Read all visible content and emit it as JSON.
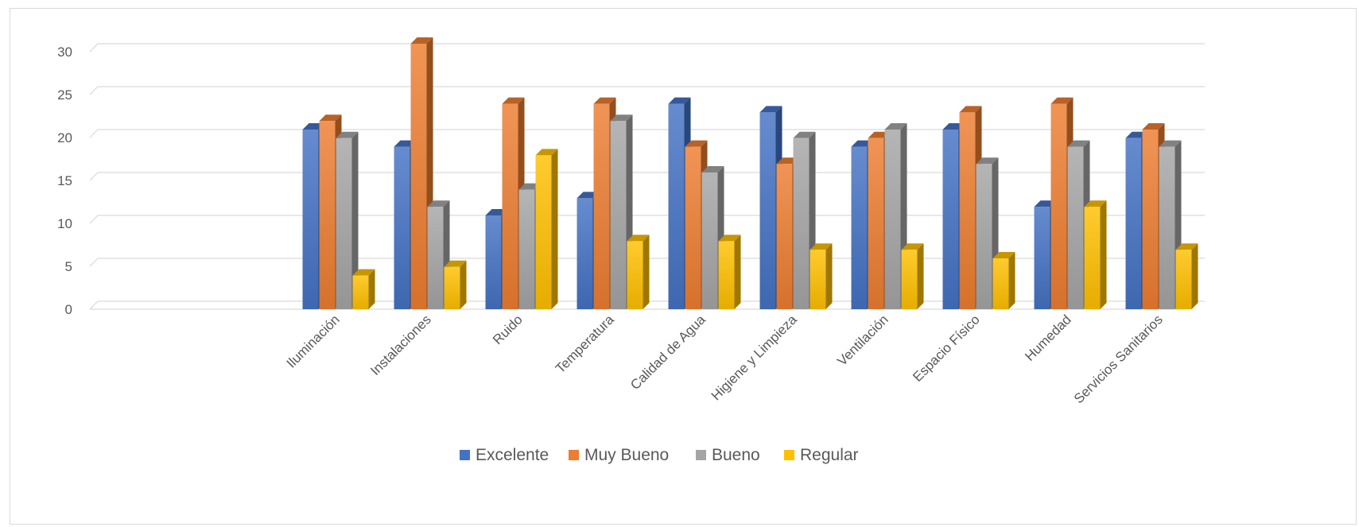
{
  "chart_data": {
    "type": "bar",
    "style": "3d-clustered-column",
    "categories": [
      "",
      "",
      "Iluminación",
      "Instalaciones",
      "Ruido",
      "Temperatura",
      "Calidad de Agua",
      "Higiene y Limpieza",
      "Ventilación",
      "Espacio Físico",
      "Humedad",
      "Servicios Sanitarios"
    ],
    "series": [
      {
        "name": "Excelente",
        "color": "#4472c4",
        "values": [
          null,
          null,
          20,
          18,
          10,
          12,
          23,
          22,
          18,
          20,
          11,
          19
        ]
      },
      {
        "name": "Muy Bueno",
        "color": "#ed7d31",
        "values": [
          null,
          null,
          21,
          30,
          23,
          23,
          18,
          16,
          19,
          22,
          23,
          20
        ]
      },
      {
        "name": "Bueno",
        "color": "#a5a5a5",
        "values": [
          null,
          null,
          19,
          11,
          13,
          21,
          15,
          19,
          20,
          16,
          18,
          18
        ]
      },
      {
        "name": "Regular",
        "color": "#ffc000",
        "values": [
          null,
          null,
          3,
          4,
          17,
          7,
          7,
          6,
          6,
          5,
          11,
          6
        ]
      }
    ],
    "yticks": [
      0,
      5,
      10,
      15,
      20,
      25,
      30
    ],
    "ylim": [
      0,
      30
    ],
    "grid": true,
    "legend_position": "bottom",
    "title": "",
    "xlabel": "",
    "ylabel": ""
  }
}
